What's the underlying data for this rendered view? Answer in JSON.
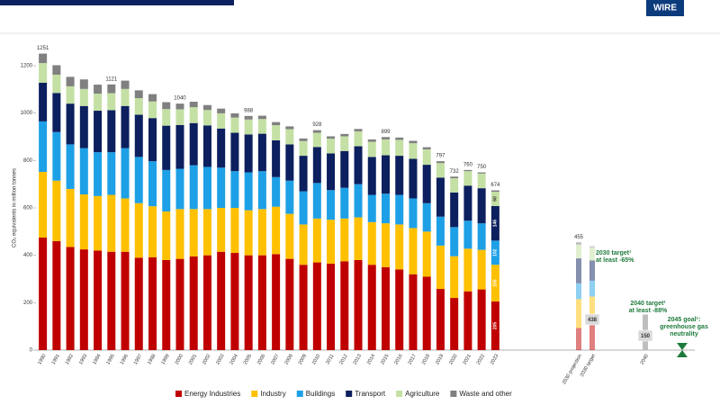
{
  "logo": "WIRE",
  "chart_data": {
    "type": "stacked-bar",
    "y_label": "CO₂ equivalents in million tonnes",
    "categories": [
      "1990",
      "1991",
      "1992",
      "1993",
      "1994",
      "1995",
      "1996",
      "1997",
      "1998",
      "1999",
      "2000",
      "2001",
      "2002",
      "2003",
      "2004",
      "2005",
      "2006",
      "2007",
      "2008",
      "2009",
      "2010",
      "2011",
      "2012",
      "2013",
      "2014",
      "2015",
      "2016",
      "2017",
      "2018",
      "2019",
      "2020",
      "2021",
      "2022",
      "2023"
    ],
    "ylim": [
      0,
      1200
    ],
    "yticks": [
      0,
      200,
      400,
      600,
      800,
      1000,
      1200
    ],
    "totals": [
      1251,
      null,
      null,
      null,
      null,
      1121,
      null,
      null,
      null,
      null,
      1040,
      null,
      null,
      null,
      null,
      988,
      null,
      null,
      null,
      null,
      928,
      null,
      null,
      null,
      null,
      899,
      null,
      null,
      null,
      797,
      732,
      760,
      750,
      674
    ],
    "series": [
      {
        "name": "Energy Industries",
        "color": "#c00000",
        "values": [
          475,
          460,
          435,
          425,
          420,
          415,
          415,
          390,
          392,
          380,
          385,
          395,
          400,
          415,
          410,
          400,
          400,
          405,
          385,
          360,
          370,
          365,
          375,
          380,
          360,
          350,
          340,
          320,
          310,
          258,
          220,
          248,
          256,
          205
        ],
        "projection_values": [
          93,
          108
        ]
      },
      {
        "name": "Industry",
        "color": "#ffc000",
        "values": [
          277,
          255,
          245,
          232,
          230,
          240,
          225,
          230,
          215,
          205,
          210,
          200,
          195,
          185,
          190,
          190,
          195,
          200,
          190,
          170,
          185,
          185,
          180,
          180,
          180,
          185,
          190,
          195,
          190,
          183,
          176,
          180,
          167,
          155
        ],
        "projection_values": [
          122,
          118
        ]
      },
      {
        "name": "Buildings",
        "color": "#1ea0e6",
        "values": [
          213,
          205,
          188,
          195,
          185,
          180,
          212,
          195,
          190,
          175,
          170,
          185,
          178,
          170,
          155,
          160,
          160,
          125,
          140,
          140,
          150,
          125,
          130,
          140,
          115,
          125,
          125,
          125,
          120,
          122,
          123,
          118,
          112,
          102
        ],
        "projection_values": [
          67,
          67
        ]
      },
      {
        "name": "Transport",
        "color": "#0c1f5e",
        "values": [
          163,
          165,
          172,
          178,
          175,
          177,
          178,
          178,
          182,
          187,
          185,
          178,
          175,
          165,
          162,
          160,
          158,
          155,
          153,
          150,
          152,
          155,
          155,
          160,
          160,
          162,
          165,
          167,
          162,
          165,
          146,
          148,
          148,
          146
        ],
        "projection_values": [
          105,
          85
        ]
      },
      {
        "name": "Agriculture",
        "color": "#c4e0a4",
        "values": [
          83,
          77,
          73,
          72,
          72,
          72,
          72,
          70,
          70,
          70,
          66,
          67,
          65,
          64,
          64,
          63,
          62,
          64,
          64,
          62,
          60,
          62,
          62,
          63,
          64,
          67,
          67,
          66,
          65,
          61,
          60,
          61,
          62,
          60
        ],
        "projection_values": [
          58,
          56
        ]
      },
      {
        "name": "Waste and other",
        "color": "#808080",
        "values": [
          40,
          40,
          40,
          40,
          38,
          37,
          35,
          33,
          31,
          29,
          24,
          23,
          21,
          20,
          18,
          15,
          14,
          13,
          12,
          11,
          11,
          10,
          10,
          10,
          10,
          10,
          10,
          10,
          9,
          8,
          7,
          5,
          5,
          6
        ],
        "projection_values": [
          10,
          4
        ]
      }
    ],
    "projection_categories": [
      "2030 projection",
      "2030 target"
    ],
    "projection_totals": [
      455,
      438
    ],
    "target_2040": {
      "category": "2040",
      "value": 150,
      "color": "#bfbfbf"
    },
    "annotations": [
      {
        "lines": [
          "2030 target¹",
          "at least -65%"
        ]
      },
      {
        "lines": [
          "2040 target¹",
          "at least -88%"
        ]
      },
      {
        "lines": [
          "2045 goal¹:",
          "greenhouse gas",
          "neutrality"
        ]
      }
    ]
  }
}
